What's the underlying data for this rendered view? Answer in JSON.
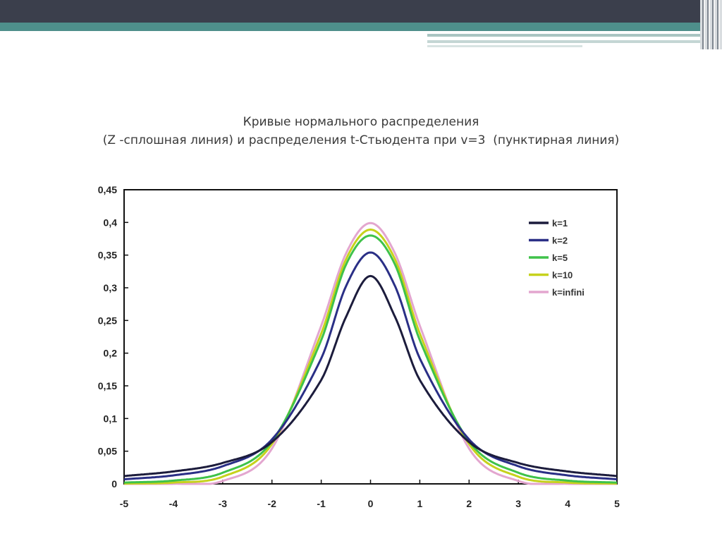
{
  "slide": {
    "title_line1": "Кривые нормального распределения",
    "title_line2": "(Z -сплошная линия) и распределения t-Стьюдента при v=3  (пунктирная линия)"
  },
  "chart_data": {
    "type": "line",
    "xlim": [
      -5,
      5
    ],
    "ylim": [
      0,
      0.45
    ],
    "x_ticks": [
      "-5",
      "-4",
      "-3",
      "-2",
      "-1",
      "0",
      "1",
      "2",
      "3",
      "4",
      "5"
    ],
    "y_ticks": [
      "0",
      "0,05",
      "0,1",
      "0,15",
      "0,2",
      "0,25",
      "0,3",
      "0,35",
      "0,4",
      "0,45"
    ],
    "legend_position": "top-right",
    "grid": false,
    "x": [
      -5,
      -4,
      -3,
      -2,
      -1,
      -0.5,
      0,
      0.5,
      1,
      2,
      3,
      4,
      5
    ],
    "series": [
      {
        "name": "k=1",
        "color": "#1c1c3c",
        "values": [
          0.012,
          0.019,
          0.032,
          0.064,
          0.159,
          0.255,
          0.318,
          0.255,
          0.159,
          0.064,
          0.032,
          0.019,
          0.012
        ]
      },
      {
        "name": "k=2",
        "color": "#2a2f86",
        "values": [
          0.007,
          0.013,
          0.027,
          0.068,
          0.192,
          0.302,
          0.354,
          0.302,
          0.192,
          0.068,
          0.027,
          0.013,
          0.007
        ]
      },
      {
        "name": "k=5",
        "color": "#3fc24a",
        "values": [
          0.002,
          0.005,
          0.017,
          0.065,
          0.22,
          0.335,
          0.38,
          0.335,
          0.22,
          0.065,
          0.017,
          0.005,
          0.002
        ]
      },
      {
        "name": "k=10",
        "color": "#c6d21c",
        "values": [
          0.0004,
          0.002,
          0.011,
          0.061,
          0.23,
          0.343,
          0.389,
          0.343,
          0.23,
          0.061,
          0.011,
          0.002,
          0.0004
        ]
      },
      {
        "name": "k=infini",
        "color": "#e3a6cf",
        "values": [
          1.5e-06,
          0.0001,
          0.0044,
          0.054,
          0.242,
          0.352,
          0.399,
          0.352,
          0.242,
          0.054,
          0.0044,
          0.0001,
          1.5e-06
        ]
      }
    ]
  }
}
